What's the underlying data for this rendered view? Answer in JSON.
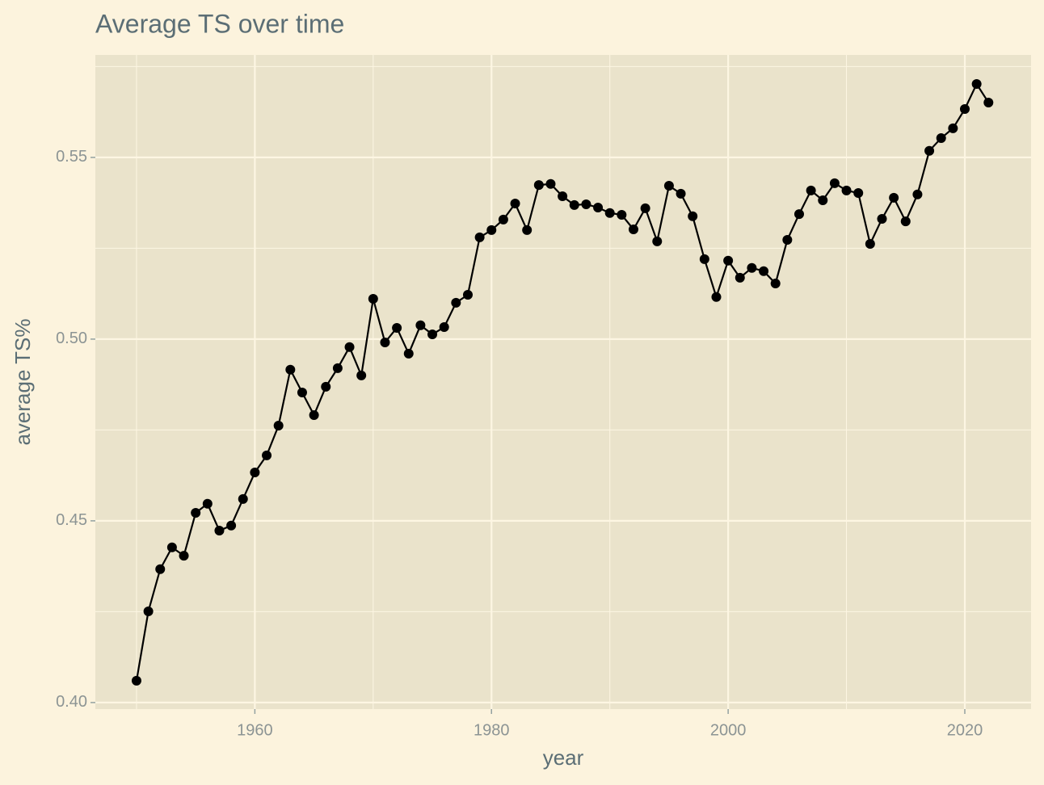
{
  "chart_data": {
    "type": "line",
    "title": "Average TS over time",
    "x_label": "year",
    "y_label": "average TS%",
    "x": [
      1950,
      1951,
      1952,
      1953,
      1954,
      1955,
      1956,
      1957,
      1958,
      1959,
      1960,
      1961,
      1962,
      1963,
      1964,
      1965,
      1966,
      1967,
      1968,
      1969,
      1970,
      1971,
      1972,
      1973,
      1974,
      1975,
      1976,
      1977,
      1978,
      1979,
      1980,
      1981,
      1982,
      1983,
      1984,
      1985,
      1986,
      1987,
      1988,
      1989,
      1990,
      1991,
      1992,
      1993,
      1994,
      1995,
      1996,
      1997,
      1998,
      1999,
      2000,
      2001,
      2002,
      2003,
      2004,
      2005,
      2006,
      2007,
      2008,
      2009,
      2010,
      2011,
      2012,
      2013,
      2014,
      2015,
      2016,
      2017,
      2018,
      2019,
      2020,
      2021,
      2022
    ],
    "series": [
      {
        "color": "#000000",
        "values": [
          0.406,
          0.4251,
          0.4367,
          0.4427,
          0.4404,
          0.4522,
          0.4547,
          0.4473,
          0.4487,
          0.456,
          0.4633,
          0.468,
          0.4762,
          0.4916,
          0.4853,
          0.4791,
          0.4869,
          0.492,
          0.4978,
          0.49,
          0.5111,
          0.4991,
          0.5031,
          0.496,
          0.5038,
          0.5013,
          0.5033,
          0.51,
          0.5122,
          0.528,
          0.53,
          0.5329,
          0.5373,
          0.53,
          0.5424,
          0.5427,
          0.5393,
          0.5369,
          0.5371,
          0.5362,
          0.5347,
          0.5342,
          0.5302,
          0.536,
          0.5269,
          0.5422,
          0.54,
          0.5338,
          0.522,
          0.5116,
          0.5216,
          0.5169,
          0.5196,
          0.5187,
          0.5153,
          0.5273,
          0.5344,
          0.5409,
          0.5382,
          0.5429,
          0.5409,
          0.5402,
          0.5262,
          0.5331,
          0.5389,
          0.5324,
          0.5398,
          0.5518,
          0.5553,
          0.558,
          0.5633,
          0.5702,
          0.5651
        ]
      }
    ],
    "xlim": [
      1946.52,
      2025.6
    ],
    "ylim": [
      0.3982,
      0.5782
    ],
    "xticks": [
      1960,
      1980,
      2000,
      2020
    ],
    "yticks": [
      {
        "value": 0.4,
        "label": "0.40"
      },
      0.45,
      {
        "value": 0.5,
        "label": "0.50"
      },
      0.55
    ],
    "grid": true
  }
}
